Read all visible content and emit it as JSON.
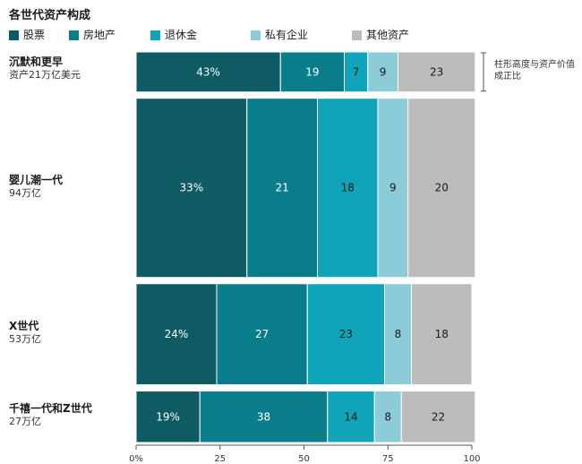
{
  "chart_data": {
    "type": "bar",
    "stacked": true,
    "normalized_percent": true,
    "orientation": "horizontal",
    "title": "各世代资产构成",
    "categories": [
      {
        "name": "沉默和更早",
        "sub": "资产21万亿美元",
        "total": 21
      },
      {
        "name": "婴儿潮一代",
        "sub": "94万亿",
        "total": 94
      },
      {
        "name": "X世代",
        "sub": "53万亿",
        "total": 53
      },
      {
        "name": "千禧一代和Z世代",
        "sub": "27万亿",
        "total": 27
      }
    ],
    "series": [
      {
        "name": "股票",
        "color": "#0e5b63",
        "label_color": "#ffffff",
        "values": [
          43,
          33,
          24,
          19
        ],
        "labels": [
          "43%",
          "33%",
          "24%",
          "19%"
        ]
      },
      {
        "name": "房地产",
        "color": "#0a7d8a",
        "label_color": "#ffffff",
        "values": [
          19,
          21,
          27,
          38
        ],
        "labels": [
          "19",
          "21",
          "27",
          "38"
        ]
      },
      {
        "name": "退休金",
        "color": "#0fa4ba",
        "label_color": "#1a1a1a",
        "values": [
          7,
          18,
          23,
          14
        ],
        "labels": [
          "7",
          "18",
          "23",
          "14"
        ]
      },
      {
        "name": "私有企业",
        "color": "#8ccbd8",
        "label_color": "#1a1a1a",
        "values": [
          9,
          9,
          8,
          8
        ],
        "labels": [
          "9",
          "9",
          "8",
          "8"
        ]
      },
      {
        "name": "其他资产",
        "color": "#bcbcbc",
        "label_color": "#1a1a1a",
        "values": [
          23,
          20,
          18,
          22
        ],
        "labels": [
          "23",
          "20",
          "18",
          "22"
        ]
      }
    ],
    "xlim": [
      0,
      100
    ],
    "xticks": [
      {
        "value": 0,
        "label": "0%"
      },
      {
        "value": 25,
        "label": "25"
      },
      {
        "value": 50,
        "label": "50"
      },
      {
        "value": 75,
        "label": "75"
      },
      {
        "value": 100,
        "label": "100"
      }
    ],
    "annotation": "柱形高度与资产价值成正比",
    "legend_position": "top",
    "grid": false
  }
}
